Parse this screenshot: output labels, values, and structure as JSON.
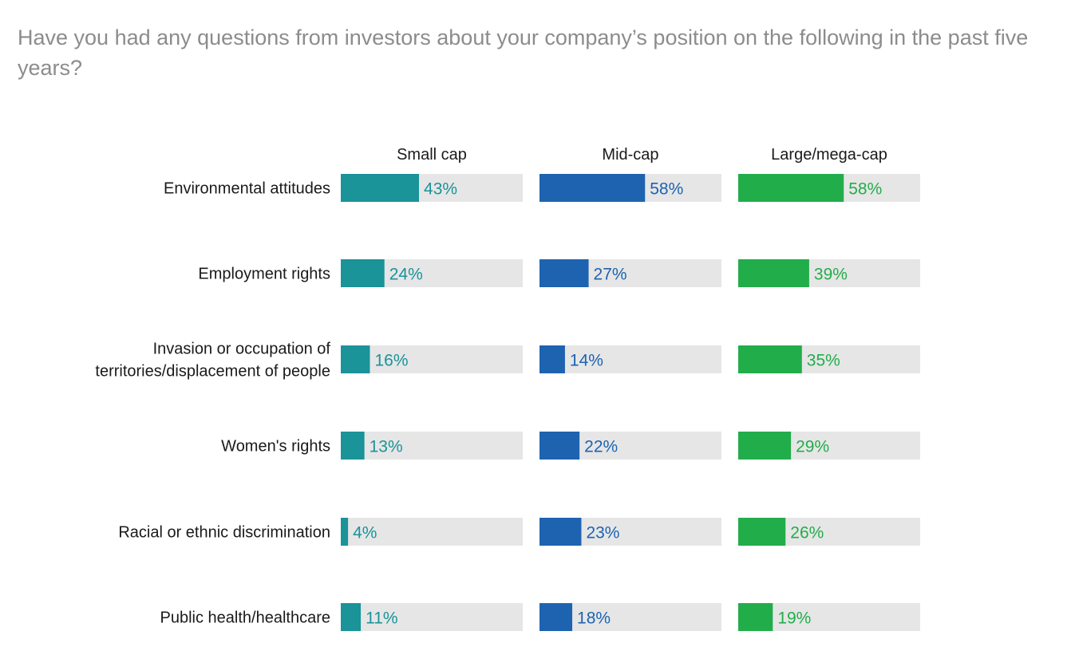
{
  "chart_data": {
    "type": "bar",
    "title": "Have you had any questions from investors about your company’s position on the following in the past five years?",
    "categories": [
      [
        "Environmental attitudes"
      ],
      [
        "Employment rights"
      ],
      [
        "Invasion or occupation of",
        "territories/displacement of people"
      ],
      [
        "Women's rights"
      ],
      [
        "Racial or ethnic discrimination"
      ],
      [
        "Public health/healthcare"
      ]
    ],
    "series": [
      {
        "name": "Small cap",
        "color": "#1a9399",
        "values": [
          43,
          24,
          16,
          13,
          4,
          11
        ]
      },
      {
        "name": "Mid-cap",
        "color": "#1e63b0",
        "values": [
          58,
          27,
          14,
          22,
          23,
          18
        ]
      },
      {
        "name": "Large/mega-cap",
        "color": "#22ad4b",
        "values": [
          58,
          39,
          35,
          29,
          26,
          19
        ]
      }
    ],
    "value_suffix": "%",
    "ylim": [
      0,
      100
    ],
    "track_color": "#e6e6e6"
  }
}
